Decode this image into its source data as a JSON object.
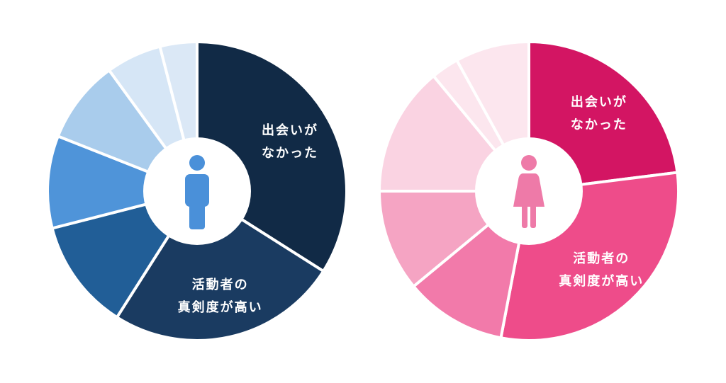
{
  "chart_data": [
    {
      "type": "pie",
      "donut": true,
      "icon": "male-person-icon",
      "icon_color": "#4a90d9",
      "start": "top",
      "slices": [
        {
          "value": 34,
          "color": "#112a46",
          "label": [
            "出会いが",
            "なかった"
          ]
        },
        {
          "value": 25,
          "color": "#1a3b61",
          "label": [
            "活動者の",
            "真剣度が高い"
          ]
        },
        {
          "value": 12,
          "color": "#215e97",
          "label": []
        },
        {
          "value": 10,
          "color": "#4f94d9",
          "label": []
        },
        {
          "value": 9,
          "color": "#a9ccec",
          "label": []
        },
        {
          "value": 6,
          "color": "#d6e6f6",
          "label": []
        },
        {
          "value": 4,
          "color": "#dbe8f6",
          "label": []
        }
      ]
    },
    {
      "type": "pie",
      "donut": true,
      "icon": "female-person-icon",
      "icon_color": "#ee7aa8",
      "start": "top",
      "slices": [
        {
          "value": 23,
          "color": "#d31563",
          "label": [
            "出会いが",
            "なかった"
          ]
        },
        {
          "value": 30,
          "color": "#ee4c8a",
          "label": [
            "活動者の",
            "真剣度が高い"
          ]
        },
        {
          "value": 11,
          "color": "#f27aaa",
          "label": []
        },
        {
          "value": 11,
          "color": "#f5a4c3",
          "label": []
        },
        {
          "value": 14,
          "color": "#fad3e2",
          "label": []
        },
        {
          "value": 3,
          "color": "#fce6ee",
          "label": []
        },
        {
          "value": 8,
          "color": "#fce6ee",
          "label": []
        }
      ]
    }
  ]
}
